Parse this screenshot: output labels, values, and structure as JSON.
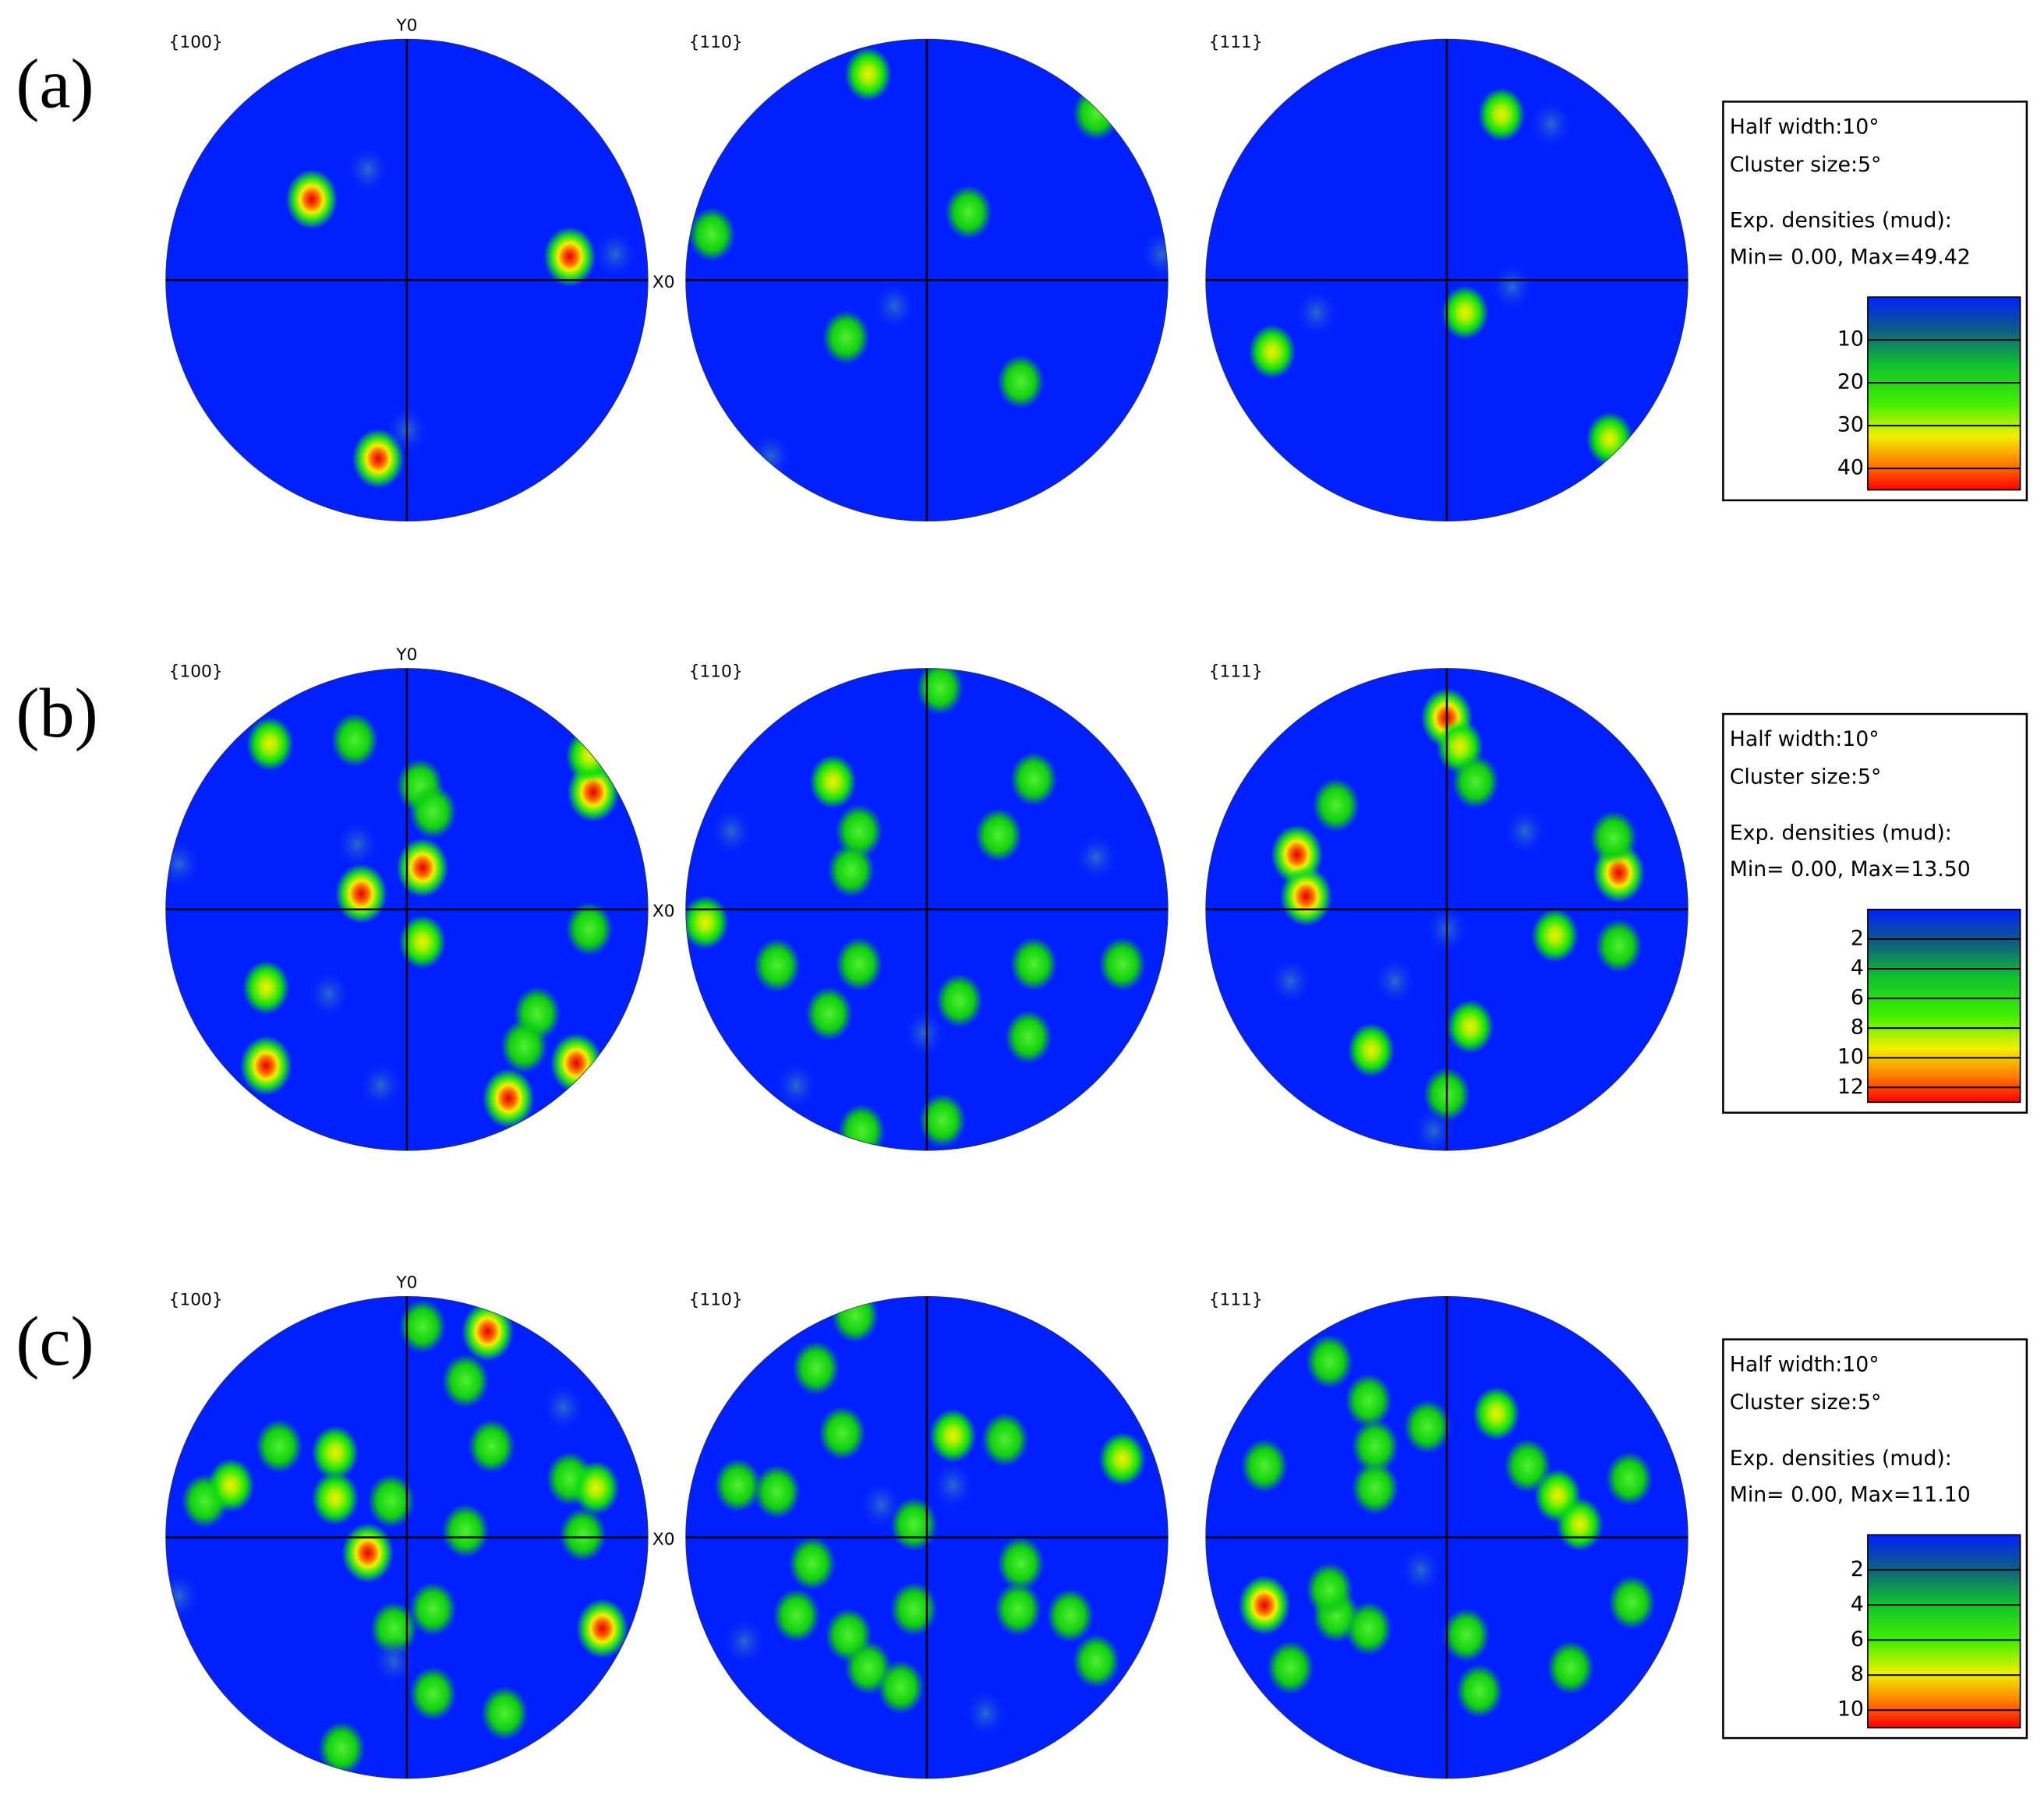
{
  "rows": [
    {
      "label": "(a)",
      "x_axis": "X0",
      "y_axis": "Y0",
      "figures": [
        "{100}",
        "{110}",
        "{111}"
      ],
      "legend": {
        "half_width": "Half width:10°",
        "cluster_size": "Cluster size:5°",
        "densities_title": "Exp. densities (mud):",
        "min_max": "Min= 0.00, Max=49.42",
        "scale": [
          "10",
          "20",
          "30",
          "40"
        ]
      }
    },
    {
      "label": "(b)",
      "x_axis": "X0",
      "y_axis": "Y0",
      "figures": [
        "{100}",
        "{110}",
        "{111}"
      ],
      "legend": {
        "half_width": "Half width:10°",
        "cluster_size": "Cluster size:5°",
        "densities_title": "Exp. densities (mud):",
        "min_max": "Min= 0.00, Max=13.50",
        "scale": [
          "2",
          "4",
          "6",
          "8",
          "10",
          "12"
        ]
      }
    },
    {
      "label": "(c)",
      "x_axis": "X0",
      "y_axis": "Y0",
      "figures": [
        "{100}",
        "{110}",
        "{111}"
      ],
      "legend": {
        "half_width": "Half width:10°",
        "cluster_size": "Cluster size:5°",
        "densities_title": "Exp. densities (mud):",
        "min_max": "Min= 0.00, Max=11.10",
        "scale": [
          "2",
          "4",
          "6",
          "8",
          "10"
        ]
      }
    }
  ]
}
